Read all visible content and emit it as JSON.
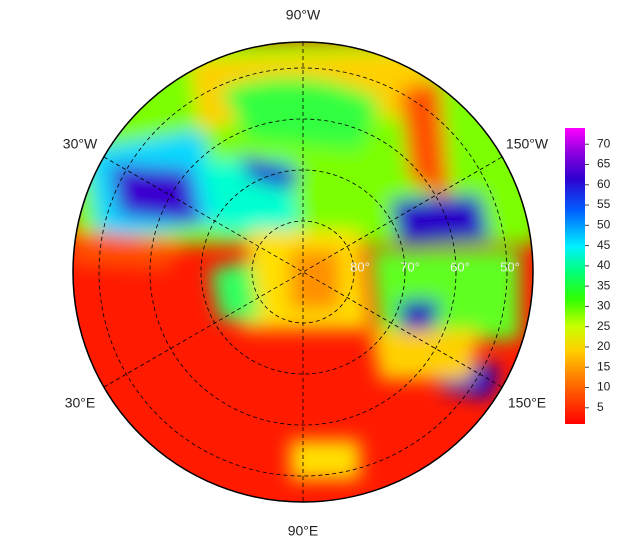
{
  "map": {
    "type": "polar-map",
    "longitude_labels": [
      "90°W",
      "30°W",
      "150°W",
      "30°E",
      "150°E",
      "90°E"
    ],
    "latitude_labels": [
      "80°",
      "70°",
      "60°",
      "50°"
    ],
    "colorbar": {
      "lim": [
        1,
        74
      ],
      "ticks": [
        5,
        10,
        15,
        20,
        25,
        30,
        35,
        40,
        45,
        50,
        55,
        60,
        65,
        70
      ]
    }
  }
}
